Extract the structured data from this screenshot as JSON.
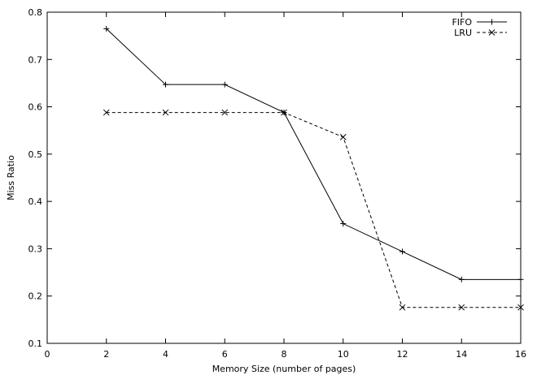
{
  "chart_data": {
    "type": "line",
    "title": "",
    "xlabel": "Memory Size (number of pages)",
    "ylabel": "Miss Ratio",
    "xlim": [
      0,
      16
    ],
    "ylim": [
      0.1,
      0.8
    ],
    "xticks": [
      "0",
      "2",
      "4",
      "6",
      "8",
      "10",
      "12",
      "14",
      "16"
    ],
    "yticks": [
      "0.1",
      "0.2",
      "0.3",
      "0.4",
      "0.5",
      "0.6",
      "0.7",
      "0.8"
    ],
    "grid": false,
    "legend_position": "top-right",
    "series": [
      {
        "name": "FIFO",
        "line_style": "solid",
        "marker": "plus",
        "x": [
          2,
          4,
          6,
          8,
          10,
          12,
          14,
          16
        ],
        "y": [
          0.765,
          0.647,
          0.647,
          0.588,
          0.353,
          0.294,
          0.235,
          0.235
        ]
      },
      {
        "name": "LRU",
        "line_style": "dashed",
        "marker": "cross",
        "x": [
          2,
          4,
          6,
          8,
          10,
          12,
          14,
          16
        ],
        "y": [
          0.588,
          0.588,
          0.588,
          0.588,
          0.536,
          0.176,
          0.176,
          0.176
        ]
      }
    ]
  }
}
